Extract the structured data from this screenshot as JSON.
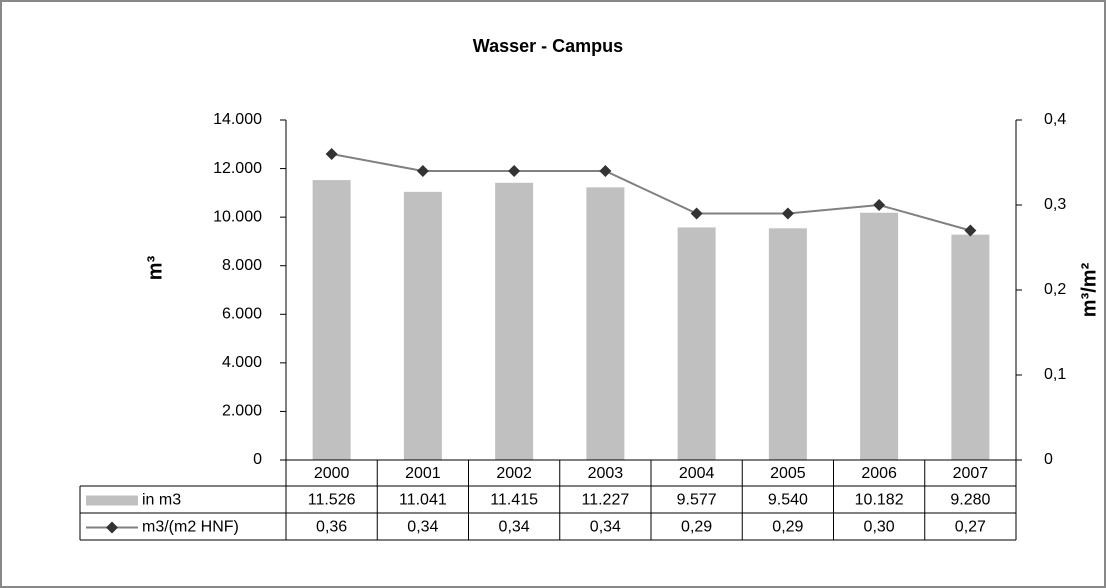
{
  "chart_data": {
    "type": "bar",
    "title": "Wasser - Campus",
    "ylabel": "m³",
    "y2label": "m³/m²",
    "categories": [
      "2000",
      "2001",
      "2002",
      "2003",
      "2004",
      "2005",
      "2006",
      "2007"
    ],
    "series": [
      {
        "name": "in m3",
        "color": "#c0c0c0",
        "type": "bar",
        "values": [
          11526,
          11041,
          11415,
          11227,
          9577,
          9540,
          10182,
          9280
        ],
        "value_labels": [
          "11.526",
          "11.041",
          "11.415",
          "11.227",
          "9.577",
          "9.540",
          "10.182",
          "9.280"
        ]
      },
      {
        "name": "m3/(m2 HNF)",
        "color": "#808080",
        "marker_color": "#333333",
        "type": "line",
        "axis": "y2",
        "values": [
          0.36,
          0.34,
          0.34,
          0.34,
          0.29,
          0.29,
          0.3,
          0.27
        ],
        "value_labels": [
          "0,36",
          "0,34",
          "0,34",
          "0,34",
          "0,29",
          "0,29",
          "0,30",
          "0,27"
        ]
      }
    ],
    "ylim": [
      0,
      14000
    ],
    "yticks": [
      0,
      {
        "value": 2000,
        "label": "2.000"
      },
      {
        "value": 4000,
        "label": "4.000"
      },
      {
        "value": 6000,
        "label": "6.000"
      },
      {
        "value": 8000,
        "label": "8.000"
      },
      {
        "value": 10000,
        "label": "10.000"
      },
      {
        "value": 12000,
        "label": "12.000"
      },
      {
        "value": 14000,
        "label": "14.000"
      }
    ],
    "y2lim": [
      0,
      0.4
    ],
    "y2ticks": [
      0,
      {
        "value": 0.1,
        "label": "0,1"
      },
      {
        "value": 0.2,
        "label": "0,2"
      },
      {
        "value": 0.3,
        "label": "0,3"
      },
      {
        "value": 0.4,
        "label": "0,4"
      }
    ],
    "data_table": true
  }
}
